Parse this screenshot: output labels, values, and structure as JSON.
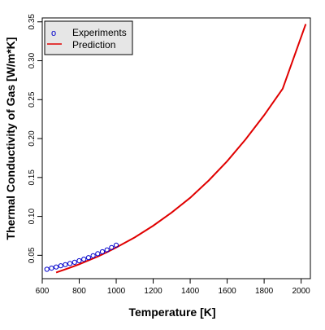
{
  "colors": {
    "experiments": "#0000cc",
    "prediction": "#e00000",
    "legend_bg": "#e6e6e6",
    "axis": "#000000"
  },
  "chart_data": {
    "type": "scatter",
    "title": "",
    "xlabel": "Temperature [K]",
    "ylabel": "Thermal Conductivity of Gas [W/m*K]",
    "xlim": [
      600,
      2050
    ],
    "ylim": [
      0.02,
      0.355
    ],
    "x_ticks": [
      600,
      800,
      1000,
      1200,
      1400,
      1600,
      1800,
      2000
    ],
    "y_ticks": [
      0.05,
      0.1,
      0.15,
      0.2,
      0.25,
      0.3,
      0.35
    ],
    "x_tick_labels": [
      "600",
      "800",
      "1000",
      "1200",
      "1400",
      "1600",
      "1800",
      "2000"
    ],
    "y_tick_labels": [
      "0.05",
      "0.10",
      "0.15",
      "0.20",
      "0.25",
      "0.30",
      "0.35"
    ],
    "legend_position": "top-left",
    "legend": [
      {
        "label": "Experiments",
        "symbol": "o",
        "kind": "marker"
      },
      {
        "label": "Prediction",
        "kind": "line"
      }
    ],
    "series": [
      {
        "name": "Experiments",
        "kind": "points",
        "x": [
          625,
          650,
          675,
          700,
          725,
          750,
          775,
          800,
          825,
          850,
          875,
          900,
          925,
          950,
          975,
          1000
        ],
        "y": [
          0.032,
          0.0335,
          0.035,
          0.0365,
          0.038,
          0.0395,
          0.041,
          0.043,
          0.045,
          0.047,
          0.0495,
          0.052,
          0.0545,
          0.057,
          0.06,
          0.063
        ]
      },
      {
        "name": "Prediction",
        "kind": "line",
        "x": [
          675,
          700,
          750,
          800,
          850,
          900,
          950,
          1000,
          1100,
          1200,
          1300,
          1400,
          1500,
          1600,
          1700,
          1800,
          1900,
          2025
        ],
        "y": [
          0.028,
          0.03,
          0.034,
          0.0385,
          0.0435,
          0.0485,
          0.054,
          0.06,
          0.073,
          0.088,
          0.105,
          0.124,
          0.146,
          0.171,
          0.199,
          0.23,
          0.264,
          0.347
        ]
      }
    ]
  }
}
